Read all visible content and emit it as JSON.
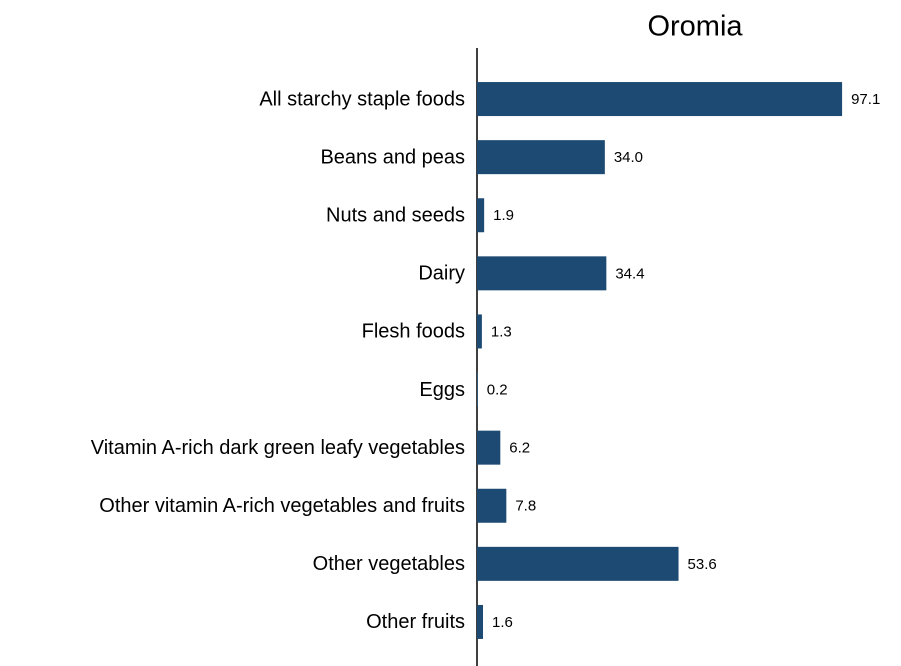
{
  "chart_data": {
    "type": "bar",
    "orientation": "horizontal",
    "title": "Oromia",
    "categories": [
      "All starchy staple foods",
      "Beans and peas",
      "Nuts and seeds",
      "Dairy",
      "Flesh foods",
      "Eggs",
      "Vitamin A-rich dark green leafy vegetables",
      "Other vitamin A-rich vegetables and fruits",
      "Other vegetables",
      "Other fruits"
    ],
    "values": [
      97.1,
      34.0,
      1.9,
      34.4,
      1.3,
      0.2,
      6.2,
      7.8,
      53.6,
      1.6
    ],
    "value_labels": [
      "97.1",
      "34.0",
      "1.9",
      "34.4",
      "1.3",
      "0.2",
      "6.2",
      "7.8",
      "53.6",
      "1.6"
    ],
    "color": "#1c4a73",
    "xlim": [
      0,
      100
    ]
  }
}
